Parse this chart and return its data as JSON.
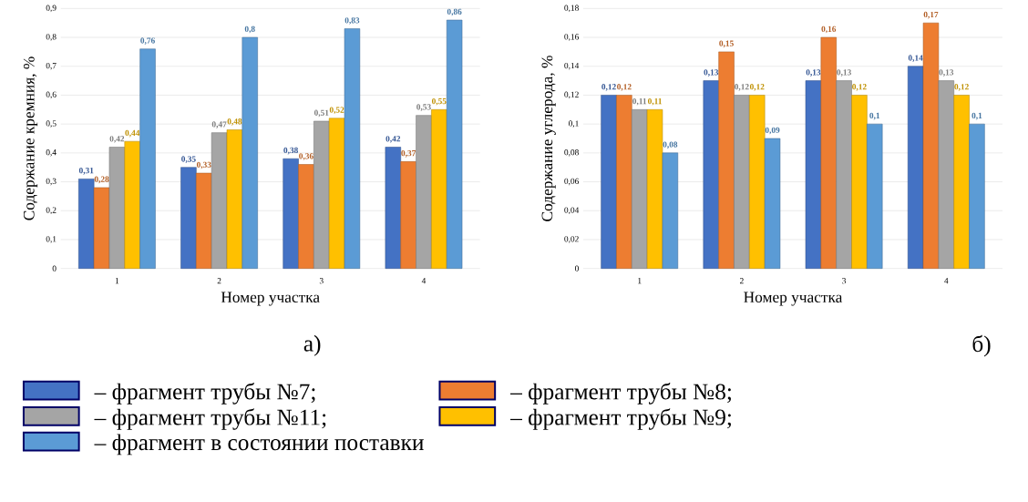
{
  "chart_data": [
    {
      "type": "bar",
      "xlabel": "Номер участка",
      "ylabel": "Содержание кремния, %",
      "annotations": [
        "а)"
      ],
      "categories": [
        "1",
        "2",
        "3",
        "4"
      ],
      "ylim": [
        0,
        0.9
      ],
      "yticks": [
        0,
        {
          "value": 0.1,
          "label": "0,1"
        },
        {
          "value": 0.2,
          "label": "0,2"
        },
        {
          "value": 0.3,
          "label": "0,3"
        },
        {
          "value": 0.4,
          "label": "0,4"
        },
        {
          "value": 0.5,
          "label": "0,5"
        },
        {
          "value": 0.6,
          "label": "0,6"
        },
        {
          "value": 0.7,
          "label": "0,7"
        },
        {
          "value": 0.8,
          "label": "0,8"
        },
        {
          "value": 0.9,
          "label": "0,9"
        }
      ],
      "grid": "y",
      "legend": "bottom",
      "series": [
        {
          "name": "– фрагмент трубы №7;",
          "color": "#4472c4",
          "values": [
            0.31,
            0.35,
            0.38,
            0.42
          ],
          "value_labels": [
            "0,31",
            "0,35",
            "0,38",
            "0,42"
          ]
        },
        {
          "name": "– фрагмент трубы №8;",
          "color": "#ed7d31",
          "values": [
            0.28,
            0.33,
            0.36,
            0.37
          ],
          "value_labels": [
            "0,28",
            "0,33",
            "0,36",
            "0,37"
          ]
        },
        {
          "name": "– фрагмент трубы №11;",
          "color": "#a5a5a5",
          "values": [
            0.42,
            0.47,
            0.51,
            0.53
          ],
          "value_labels": [
            "0,42",
            "0,47",
            "0,51",
            "0,53"
          ]
        },
        {
          "name": "– фрагмент трубы №9;",
          "color": "#ffc000",
          "values": [
            0.44,
            0.48,
            0.52,
            0.55
          ],
          "value_labels": [
            "0,44",
            "0,48",
            "0,52",
            "0,55"
          ]
        },
        {
          "name": "– фрагмент в состоянии поставки",
          "color": "#5b9bd5",
          "values": [
            0.76,
            0.8,
            0.83,
            0.86
          ],
          "value_labels": [
            "0,76",
            "0,8",
            "0,83",
            "0,86"
          ]
        }
      ]
    },
    {
      "type": "bar",
      "xlabel": "Номер участка",
      "ylabel": "Содержание углерода, %",
      "annotations": [
        "б)"
      ],
      "categories": [
        "1",
        "2",
        "3",
        "4"
      ],
      "ylim": [
        0,
        0.18
      ],
      "yticks": [
        0,
        {
          "value": 0.02,
          "label": "0,02"
        },
        {
          "value": 0.04,
          "label": "0,04"
        },
        {
          "value": 0.06,
          "label": "0,06"
        },
        {
          "value": 0.08,
          "label": "0,08"
        },
        {
          "value": 0.1,
          "label": "0,1"
        },
        {
          "value": 0.12,
          "label": "0,12"
        },
        {
          "value": 0.14,
          "label": "0,14"
        },
        {
          "value": 0.16,
          "label": "0,16"
        },
        {
          "value": 0.18,
          "label": "0,18"
        }
      ],
      "grid": "y",
      "series": [
        {
          "color": "#4472c4",
          "values": [
            0.12,
            0.13,
            0.13,
            0.14
          ],
          "value_labels": [
            "0,12",
            "0,13",
            "0,13",
            "0,14"
          ]
        },
        {
          "color": "#ed7d31",
          "values": [
            0.12,
            0.15,
            0.16,
            0.17
          ],
          "value_labels": [
            "0,12",
            "0,15",
            "0,16",
            "0,17"
          ]
        },
        {
          "color": "#a5a5a5",
          "values": [
            0.11,
            0.12,
            0.13,
            0.13
          ],
          "value_labels": [
            "0,11",
            "0,12",
            "0,13",
            "0,13"
          ]
        },
        {
          "color": "#ffc000",
          "values": [
            0.11,
            0.12,
            0.12,
            0.12
          ],
          "value_labels": [
            "0,11",
            "0,12",
            "0,12",
            "0,12"
          ]
        },
        {
          "color": "#5b9bd5",
          "values": [
            0.08,
            0.09,
            0.1,
            0.1
          ],
          "value_labels": [
            "0,08",
            "0,09",
            "0,1",
            "0,1"
          ]
        }
      ]
    }
  ]
}
